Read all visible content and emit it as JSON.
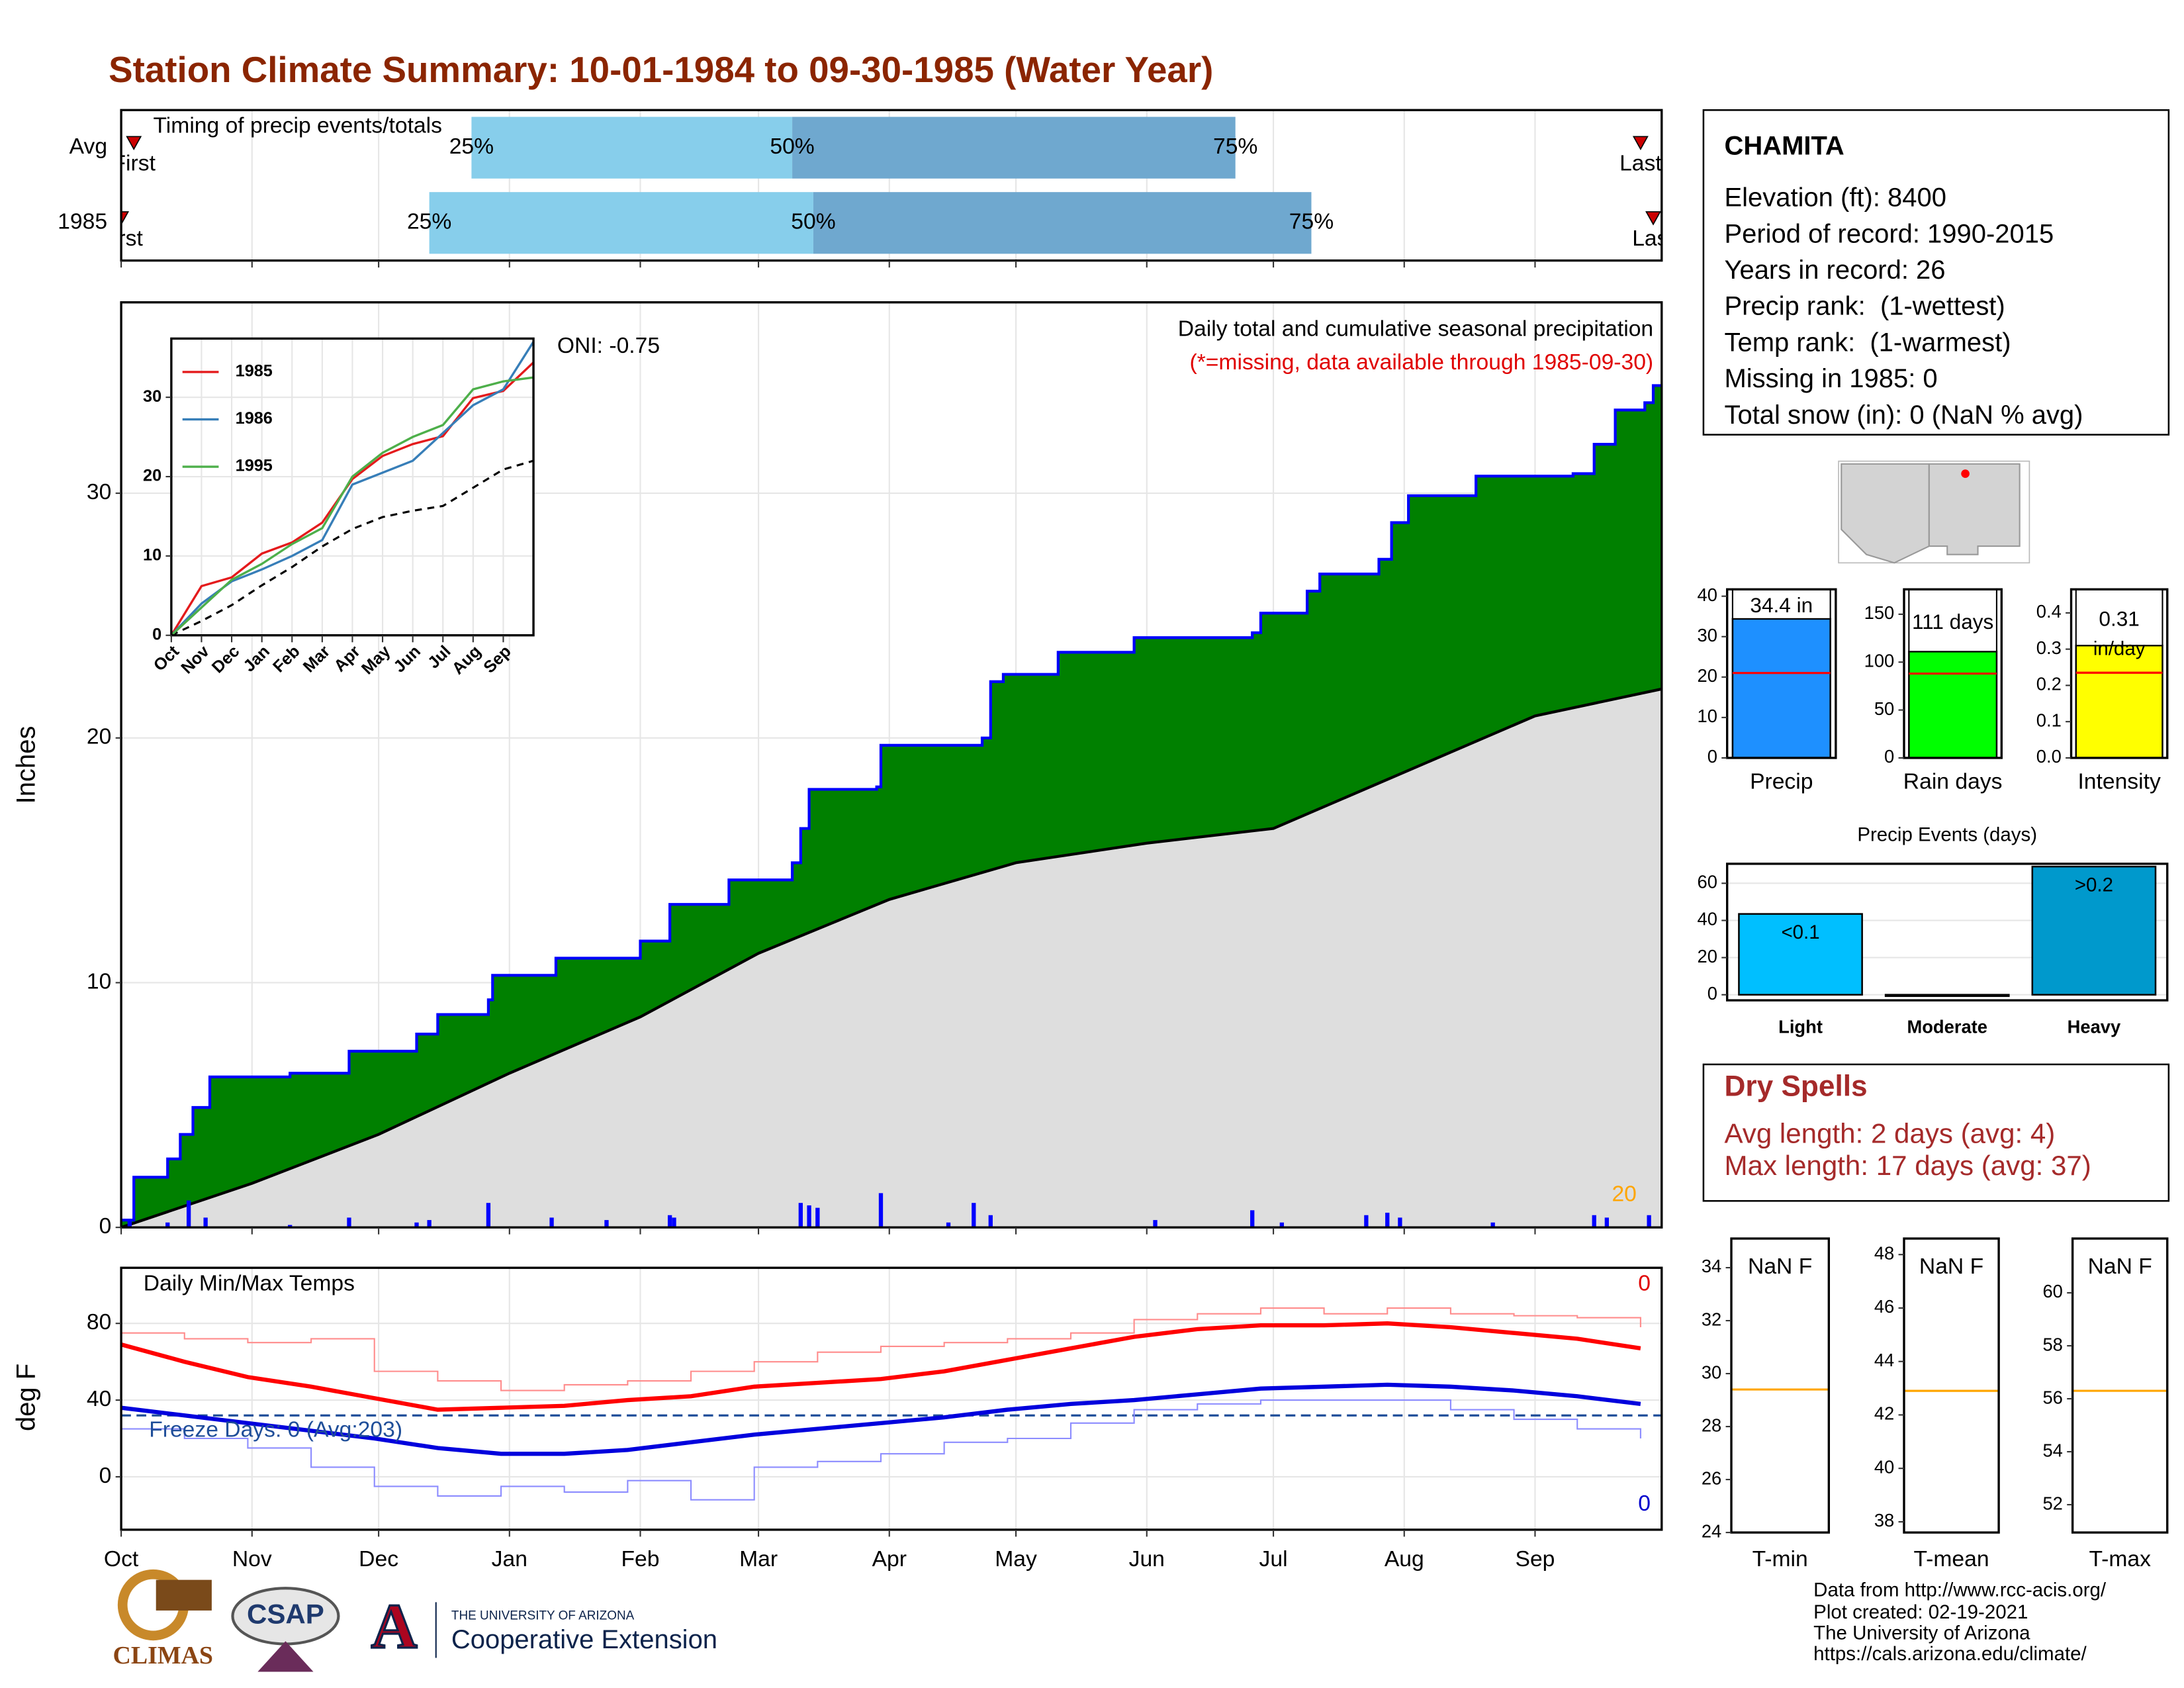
{
  "title": "Station Climate Summary: 10-01-1984 to 09-30-1985 (Water Year)",
  "station": {
    "name": "CHAMITA",
    "lines": [
      "Elevation (ft): 8400",
      "Period of record: 1990-2015",
      "Years in record: 26",
      "Precip rank:  (1-wettest)",
      "Temp rank:  (1-warmest)",
      "Missing in 1985: 0",
      "Total snow (in): 0 (NaN % avg)"
    ]
  },
  "dry_spells": {
    "title": "Dry Spells",
    "lines": [
      "Avg length: 2 days (avg: 4)",
      "Max length: 17 days (avg: 37)"
    ]
  },
  "footer": [
    "Data from http://www.rcc-acis.org/",
    "Plot created: 02-19-2021",
    "The University of Arizona",
    "https://cals.arizona.edu/climate/"
  ],
  "logos": [
    "CLIMAS",
    "CSAP",
    "THE UNIVERSITY OF ARIZONA",
    "Cooperative Extension"
  ],
  "chart_data": [
    {
      "type": "timing",
      "title": "Timing of precip events/totals",
      "labels": [
        "First",
        "25%",
        "50%",
        "75%",
        "Last"
      ],
      "colors": [
        "#cc0000",
        "#87ceeb",
        "#6fa8cf"
      ],
      "xlim": [
        0,
        365
      ],
      "xticks": [
        0,
        31,
        61,
        92,
        123,
        151,
        182,
        212,
        243,
        273,
        304,
        335
      ],
      "xtick_labels": false,
      "grid": true,
      "series": [
        {
          "name": "Avg",
          "values": [
            3,
            83,
            159,
            264,
            360
          ]
        },
        {
          "name": "1985",
          "values": [
            0,
            73,
            164,
            282,
            363
          ]
        }
      ]
    },
    {
      "type": "area",
      "title": "Daily total and cumulative seasonal precipitation",
      "subtitle": "(*=missing, data available through 1985-09-30)",
      "annotation": "ONI: -0.75",
      "count_label": "20",
      "ylabel": "Inches",
      "xlim": [
        0,
        365
      ],
      "ylim": [
        0,
        37.8
      ],
      "yticks": [
        0,
        10,
        20,
        30
      ],
      "xticks": [
        0,
        31,
        61,
        92,
        123,
        151,
        182,
        212,
        243,
        273,
        304,
        335
      ],
      "xtick_labels": false,
      "grid": true,
      "cumulative": {
        "color": "#008000",
        "line_color": "#0000ff",
        "x": [
          0,
          3,
          11,
          14,
          17,
          21,
          40,
          54,
          70,
          75,
          87,
          88,
          103,
          123,
          130,
          144,
          159,
          161,
          163,
          179,
          180,
          204,
          206,
          209,
          222,
          240,
          268,
          270,
          281,
          284,
          298,
          301,
          305,
          321,
          344,
          349,
          354,
          361,
          363
        ],
        "values": [
          0.3,
          2.05,
          2.8,
          3.8,
          4.9,
          6.15,
          6.3,
          7.2,
          7.9,
          8.7,
          9.3,
          10.3,
          11.0,
          11.7,
          13.2,
          14.2,
          14.9,
          16.3,
          17.9,
          18.0,
          19.7,
          20.0,
          22.3,
          22.6,
          23.5,
          24.1,
          24.3,
          25.1,
          26.0,
          26.7,
          27.3,
          28.8,
          29.9,
          30.7,
          30.8,
          32.0,
          33.4,
          33.7,
          34.4
        ]
      },
      "average": {
        "color": "#dedede",
        "line_color": "#000000",
        "x": [
          0,
          31,
          61,
          92,
          123,
          151,
          182,
          212,
          243,
          273,
          304,
          335,
          365
        ],
        "values": [
          0,
          1.8,
          3.8,
          6.3,
          8.6,
          11.2,
          13.4,
          14.9,
          15.7,
          16.3,
          18.6,
          20.9,
          22.0
        ]
      },
      "bars": {
        "color": "#0000ff",
        "x": [
          2,
          11,
          16,
          20,
          40,
          54,
          70,
          73,
          87,
          102,
          115,
          130,
          131,
          161,
          163,
          165,
          180,
          196,
          202,
          206,
          245,
          268,
          275,
          295,
          300,
          303,
          325,
          349,
          352,
          362
        ],
        "values": [
          0.3,
          0.2,
          1.1,
          0.4,
          0.1,
          0.4,
          0.2,
          0.3,
          1.0,
          0.4,
          0.3,
          0.5,
          0.4,
          1.0,
          0.9,
          0.8,
          1.4,
          0.2,
          1.0,
          0.5,
          0.3,
          0.7,
          0.2,
          0.5,
          0.6,
          0.4,
          0.2,
          0.5,
          0.4,
          0.5
        ]
      }
    },
    {
      "type": "line",
      "xlim": [
        0,
        12
      ],
      "ylim": [
        0,
        37.4
      ],
      "yticks": [
        0,
        10,
        20,
        30
      ],
      "grid": true,
      "legend": "top-left",
      "xticks": [
        {
          "value": 0,
          "label": "Oct"
        },
        {
          "value": 1,
          "label": "Nov"
        },
        {
          "value": 2,
          "label": "Dec"
        },
        {
          "value": 3,
          "label": "Jan"
        },
        {
          "value": 4,
          "label": "Feb"
        },
        {
          "value": 5,
          "label": "Mar"
        },
        {
          "value": 6,
          "label": "Apr"
        },
        {
          "value": 7,
          "label": "May"
        },
        {
          "value": 8,
          "label": "Jun"
        },
        {
          "value": 9,
          "label": "Jul"
        },
        {
          "value": 10,
          "label": "Aug"
        },
        {
          "value": 11,
          "label": "Sep"
        }
      ],
      "xtick_rotate": true,
      "x": [
        0,
        1,
        2,
        3,
        4,
        5,
        6,
        7,
        8,
        9,
        10,
        11,
        12
      ],
      "series": [
        {
          "name": "1985",
          "color": "#e41a1c",
          "values": [
            0,
            6.2,
            7.3,
            10.3,
            11.7,
            14.2,
            19.7,
            22.6,
            24.1,
            25.1,
            29.9,
            30.8,
            34.4
          ]
        },
        {
          "name": "1986",
          "color": "#377eb8",
          "values": [
            0,
            4,
            6.8,
            8.3,
            10,
            12,
            19,
            20.5,
            22,
            25.5,
            29,
            31,
            37
          ]
        },
        {
          "name": "1995",
          "color": "#4daf4a",
          "values": [
            0,
            3.5,
            7,
            9,
            11.5,
            13.5,
            20,
            23,
            25,
            26.5,
            31,
            32,
            32.5
          ]
        }
      ],
      "reference": {
        "color": "#000000",
        "values": [
          0,
          1.8,
          3.8,
          6.3,
          8.6,
          11.2,
          13.4,
          14.9,
          15.7,
          16.3,
          18.6,
          20.9,
          22.0
        ]
      }
    },
    {
      "type": "line",
      "title": "Daily Min/Max Temps",
      "freeze_label": "Freeze Days: 0 (Avg:203)",
      "max_label": "0",
      "min_label": "0",
      "ylabel": "deg F",
      "xlim": [
        0,
        365
      ],
      "ylim": [
        -27.6,
        109
      ],
      "yticks": [
        0,
        40,
        80
      ],
      "grid": true,
      "xticks": [
        {
          "value": 0,
          "label": "Oct"
        },
        {
          "value": 31,
          "label": "Nov"
        },
        {
          "value": 61,
          "label": "Dec"
        },
        {
          "value": 92,
          "label": "Jan"
        },
        {
          "value": 123,
          "label": "Feb"
        },
        {
          "value": 151,
          "label": "Mar"
        },
        {
          "value": 182,
          "label": "Apr"
        },
        {
          "value": 212,
          "label": "May"
        },
        {
          "value": 243,
          "label": "Jun"
        },
        {
          "value": 273,
          "label": "Jul"
        },
        {
          "value": 304,
          "label": "Aug"
        },
        {
          "value": 335,
          "label": "Sep"
        }
      ],
      "hline": {
        "value": 32,
        "color": "#1f4e99"
      },
      "x": [
        0,
        15,
        30,
        45,
        60,
        75,
        90,
        105,
        120,
        135,
        150,
        165,
        180,
        195,
        210,
        225,
        240,
        255,
        270,
        285,
        300,
        315,
        330,
        345,
        360
      ],
      "series": [
        {
          "color": "#ff8c8c",
          "width": 1,
          "step": true,
          "values": [
            75,
            72,
            70,
            72,
            55,
            50,
            45,
            48,
            50,
            55,
            60,
            65,
            68,
            70,
            72,
            75,
            82,
            85,
            88,
            85,
            88,
            85,
            84,
            83,
            78
          ]
        },
        {
          "color": "#8c8cff",
          "width": 1,
          "step": true,
          "values": [
            25,
            20,
            15,
            5,
            -5,
            -10,
            -5,
            -8,
            -2,
            -12,
            5,
            8,
            12,
            18,
            20,
            28,
            35,
            38,
            40,
            40,
            40,
            35,
            30,
            25,
            20
          ]
        },
        {
          "color": "#ff0000",
          "width": 3,
          "step": false,
          "values": [
            69,
            60,
            52,
            47,
            41,
            35,
            36,
            37,
            40,
            42,
            47,
            49,
            51,
            55,
            61,
            67,
            73,
            77,
            79,
            79,
            80,
            78,
            75,
            72,
            67
          ]
        },
        {
          "color": "#0000dd",
          "width": 3,
          "step": false,
          "values": [
            36,
            32,
            28,
            24,
            20,
            15,
            12,
            12,
            14,
            18,
            22,
            25,
            28,
            31,
            35,
            38,
            40,
            43,
            46,
            47,
            48,
            47,
            45,
            42,
            38
          ]
        }
      ]
    },
    {
      "type": "bar",
      "categories": [
        "Precip"
      ],
      "values": [
        34.4
      ],
      "value_labels": [
        "34.4 in"
      ],
      "color": "#1e90ff",
      "avg": 21,
      "avg_color": "#ff0000",
      "ylim": [
        0,
        41.7
      ],
      "yticks": [
        0,
        10,
        20,
        30,
        40
      ]
    },
    {
      "type": "bar",
      "categories": [
        "Rain days"
      ],
      "values": [
        111
      ],
      "value_labels": [
        "111 days"
      ],
      "color": "#00ff00",
      "avg": 88,
      "avg_color": "#ff0000",
      "ylim": [
        0,
        176
      ],
      "yticks": [
        0,
        50,
        100,
        150
      ]
    },
    {
      "type": "bar",
      "categories": [
        "Intensity"
      ],
      "values": [
        0.31
      ],
      "value_labels": [
        "0.31"
      ],
      "unit_label": "in/day",
      "color": "#ffff00",
      "avg": 0.235,
      "avg_color": "#ff0000",
      "ylim": [
        0,
        0.465
      ],
      "yticks": [
        {
          "value": 0,
          "label": "0.0"
        },
        0.1,
        0.2,
        0.3,
        0.4
      ]
    },
    {
      "type": "bar",
      "title": "Precip Events (days)",
      "categories": [
        "Light",
        "Moderate",
        "Heavy"
      ],
      "values": [
        43.5,
        0,
        69
      ],
      "bar_labels": [
        "<0.1",
        null,
        ">0.2"
      ],
      "colors": [
        "#00bfff",
        "#1ca0d0",
        "#0099cc"
      ],
      "ylim": [
        -3,
        70.5
      ],
      "yticks": [
        0,
        20,
        40,
        60
      ],
      "grid": true,
      "bold_categories": true
    },
    {
      "type": "summary",
      "categories": [
        "T-min"
      ],
      "label": "NaN F",
      "avg": 29.4,
      "avg_color": "#ffa500",
      "ylim": [
        24,
        35.1
      ],
      "yticks": [
        24,
        26,
        28,
        30,
        32,
        34
      ]
    },
    {
      "type": "summary",
      "categories": [
        "T-mean"
      ],
      "label": "NaN F",
      "avg": 42.9,
      "avg_color": "#ffa500",
      "ylim": [
        37.6,
        48.6
      ],
      "yticks": [
        38,
        40,
        42,
        44,
        46,
        48
      ]
    },
    {
      "type": "summary",
      "categories": [
        "T-max"
      ],
      "label": "NaN F",
      "avg": 56.3,
      "avg_color": "#ffa500",
      "ylim": [
        50.95,
        62.05
      ],
      "yticks": [
        52,
        54,
        56,
        58,
        60
      ]
    }
  ]
}
